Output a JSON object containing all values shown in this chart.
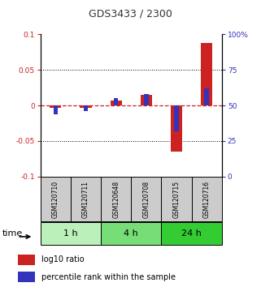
{
  "title": "GDS3433 / 2300",
  "samples": [
    "GSM120710",
    "GSM120711",
    "GSM120648",
    "GSM120708",
    "GSM120715",
    "GSM120716"
  ],
  "groups": [
    {
      "label": "1 h",
      "indices": [
        0,
        1
      ],
      "color": "#bbf0bb"
    },
    {
      "label": "4 h",
      "indices": [
        2,
        3
      ],
      "color": "#77dd77"
    },
    {
      "label": "24 h",
      "indices": [
        4,
        5
      ],
      "color": "#33cc33"
    }
  ],
  "log10_ratio": [
    -0.003,
    -0.003,
    0.007,
    0.015,
    -0.065,
    0.088
  ],
  "percentile_rank": [
    44,
    46,
    55,
    58,
    32,
    62
  ],
  "ylim_left": [
    -0.1,
    0.1
  ],
  "yticks_left": [
    -0.1,
    -0.05,
    0,
    0.05,
    0.1
  ],
  "ytick_labels_left": [
    "-0.1",
    "-0.05",
    "0",
    "0.05",
    "0.1"
  ],
  "yticks_right": [
    0,
    25,
    50,
    75,
    100
  ],
  "ytick_labels_right": [
    "0",
    "25",
    "50",
    "75",
    "100%"
  ],
  "red_color": "#cc2222",
  "blue_color": "#3333bb",
  "dashed_line_color": "#cc2222",
  "bg_color": "#ffffff",
  "grid_color": "#000000",
  "sample_box_color": "#cccccc"
}
